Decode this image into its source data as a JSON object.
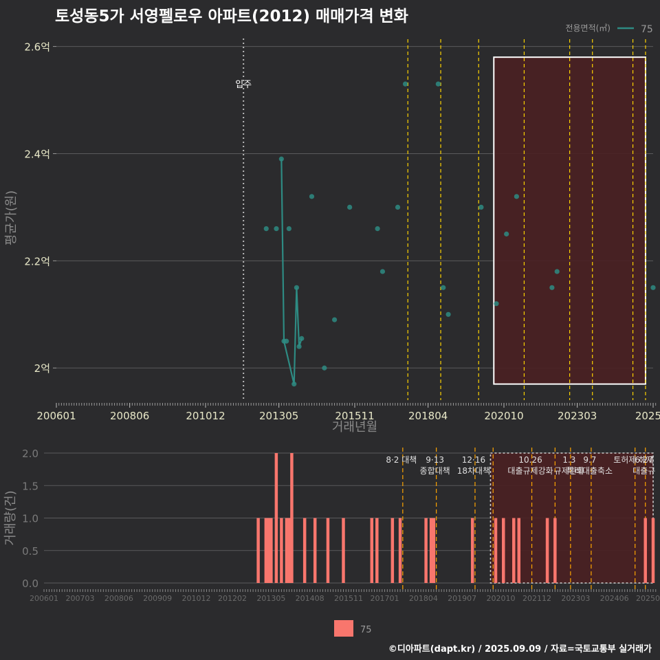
{
  "title": "토성동5가 서영펠로우 아파트(2012) 매매가격 변화",
  "credit": "©디아파트(dapt.kr) / 2025.09.09 / 자료=국토교통부 실거래가",
  "colors": {
    "background": "#2b2b2d",
    "price_series": "#2e8b83",
    "volume_bars": "#f8766d",
    "policy_lines": "#ffd400",
    "policy_lines_bottom": "#ffa500",
    "highlight_fill": "#4a2022",
    "highlight_border_top": "#ffffff",
    "highlight_border_bottom": "#cfcfcf",
    "move_in_line": "#bbbbbb",
    "gridline": "#5b5b5d",
    "axis_text": "#e8e8c8",
    "axis_text_bottom": "#7a7a7a"
  },
  "chart_data": [
    {
      "type": "scatter",
      "title": "토성동5가 서영펠로우 아파트(2012) 매매가격 변화",
      "xlabel": "거래년월",
      "ylabel": "평균가(원)",
      "x_tick_labels": [
        "200601",
        "200806",
        "201012",
        "201305",
        "201511",
        "201804",
        "202010",
        "202303",
        "2025"
      ],
      "x_tick_values": [
        "2006-01",
        "2008-06",
        "2010-12",
        "2013-05",
        "2015-11",
        "2018-04",
        "2020-10",
        "2023-03",
        "2025-09"
      ],
      "xlim": [
        "2006-01",
        "2025-09"
      ],
      "y_tick_labels": [
        "2억",
        "2.2억",
        "2.4억",
        "2.6억"
      ],
      "y_tick_values": [
        2.0,
        2.2,
        2.4,
        2.6
      ],
      "ylim": [
        1.94,
        2.62
      ],
      "y_unit": "억",
      "grid": true,
      "legend": {
        "title": "전용면적(㎡)",
        "entries": [
          "75"
        ],
        "position": "top-right"
      },
      "move_in": {
        "date": "2012-03",
        "label": "입주"
      },
      "policy_dates": [
        "2017-08",
        "2018-09",
        "2019-12",
        "2021-06",
        "2022-12",
        "2023-09",
        "2025-01",
        "2025-06"
      ],
      "highlight_range": {
        "x": [
          "2020-06",
          "2025-06"
        ],
        "y": [
          1.97,
          2.58
        ]
      },
      "series": [
        {
          "name": "75",
          "points": [
            {
              "x": "2012-12",
              "y": 2.26
            },
            {
              "x": "2013-04",
              "y": 2.26
            },
            {
              "x": "2013-06",
              "y": 2.39
            },
            {
              "x": "2013-07",
              "y": 2.05
            },
            {
              "x": "2013-08",
              "y": 2.05
            },
            {
              "x": "2013-09",
              "y": 2.26
            },
            {
              "x": "2013-11",
              "y": 1.97
            },
            {
              "x": "2013-12",
              "y": 2.15
            },
            {
              "x": "2014-01",
              "y": 2.04
            },
            {
              "x": "2014-02",
              "y": 2.055
            },
            {
              "x": "2014-06",
              "y": 2.32
            },
            {
              "x": "2014-11",
              "y": 2.0
            },
            {
              "x": "2015-03",
              "y": 2.09
            },
            {
              "x": "2015-09",
              "y": 2.3
            },
            {
              "x": "2016-08",
              "y": 2.26
            },
            {
              "x": "2016-10",
              "y": 2.18
            },
            {
              "x": "2017-04",
              "y": 2.3
            },
            {
              "x": "2017-07",
              "y": 2.53
            },
            {
              "x": "2018-08",
              "y": 2.53
            },
            {
              "x": "2018-10",
              "y": 2.15
            },
            {
              "x": "2018-12",
              "y": 2.1
            },
            {
              "x": "2020-01",
              "y": 2.3
            },
            {
              "x": "2020-07",
              "y": 2.12
            },
            {
              "x": "2020-11",
              "y": 2.25
            },
            {
              "x": "2021-03",
              "y": 2.32
            },
            {
              "x": "2022-05",
              "y": 2.15
            },
            {
              "x": "2022-07",
              "y": 2.18
            },
            {
              "x": "2025-09",
              "y": 2.15
            }
          ],
          "line_segment": [
            {
              "x": "2013-06",
              "y": 2.39
            },
            {
              "x": "2013-07",
              "y": 2.05
            },
            {
              "x": "2013-11",
              "y": 1.97
            },
            {
              "x": "2013-12",
              "y": 2.15
            },
            {
              "x": "2014-01",
              "y": 2.04
            },
            {
              "x": "2014-02",
              "y": 2.055
            }
          ]
        }
      ]
    },
    {
      "type": "bar",
      "xlabel": "",
      "ylabel": "거래량(건)",
      "x_tick_labels": [
        "200601",
        "200703",
        "200806",
        "200909",
        "201012",
        "201202",
        "201305",
        "201408",
        "201511",
        "201701",
        "201804",
        "201907",
        "202010",
        "202112",
        "202303",
        "202406",
        "20250"
      ],
      "x_tick_values": [
        "2006-01",
        "2007-03",
        "2008-06",
        "2009-09",
        "2010-12",
        "2012-02",
        "2013-05",
        "2014-08",
        "2015-11",
        "2017-01",
        "2018-04",
        "2019-07",
        "2020-10",
        "2021-12",
        "2023-03",
        "2024-06",
        "2025-09"
      ],
      "xlim": [
        "2006-01",
        "2025-09"
      ],
      "y_tick_labels": [
        "0.0",
        "0.5",
        "1.0",
        "1.5",
        "2.0"
      ],
      "y_tick_values": [
        0,
        0.5,
        1.0,
        1.5,
        2.0
      ],
      "ylim": [
        0,
        2.0
      ],
      "grid": true,
      "legend": {
        "entries": [
          "75"
        ],
        "position": "bottom"
      },
      "highlight_range": {
        "x": [
          "2020-06",
          "2025-09"
        ],
        "y": [
          0,
          2.0
        ]
      },
      "policy_events": [
        {
          "date": "2017-08",
          "label_lines": [
            "8·2 대책"
          ]
        },
        {
          "date": "2018-09",
          "label_lines": [
            "9·13",
            "종합대책"
          ]
        },
        {
          "date": "2019-12",
          "label_lines": [
            "12·16",
            "18차대책"
          ]
        },
        {
          "date": "2020-07",
          "label_lines": []
        },
        {
          "date": "2021-10",
          "label_lines": [
            "10.26",
            "대출규제강화"
          ]
        },
        {
          "date": "2022-07",
          "label_lines": []
        },
        {
          "date": "2023-01",
          "label_lines": [
            "1.3",
            "규제완화"
          ]
        },
        {
          "date": "2023-09",
          "label_lines": [
            "9.7",
            "특례대출축소"
          ]
        },
        {
          "date": "2025-02",
          "label_lines": [
            "토허제 해제"
          ]
        },
        {
          "date": "2025-06",
          "label_lines": [
            "6.27",
            "대출규"
          ]
        }
      ],
      "bars": [
        {
          "x": "2012-12",
          "value": 1
        },
        {
          "x": "2013-03",
          "value": 1
        },
        {
          "x": "2013-04",
          "value": 1
        },
        {
          "x": "2013-05",
          "value": 1
        },
        {
          "x": "2013-07",
          "value": 2
        },
        {
          "x": "2013-09",
          "value": 1
        },
        {
          "x": "2013-11",
          "value": 1
        },
        {
          "x": "2013-12",
          "value": 1
        },
        {
          "x": "2014-01",
          "value": 2
        },
        {
          "x": "2014-06",
          "value": 1
        },
        {
          "x": "2014-10",
          "value": 1
        },
        {
          "x": "2015-03",
          "value": 1
        },
        {
          "x": "2015-09",
          "value": 1
        },
        {
          "x": "2016-08",
          "value": 1
        },
        {
          "x": "2016-10",
          "value": 1
        },
        {
          "x": "2017-04",
          "value": 1
        },
        {
          "x": "2017-07",
          "value": 1
        },
        {
          "x": "2018-05",
          "value": 1
        },
        {
          "x": "2018-07",
          "value": 1
        },
        {
          "x": "2018-08",
          "value": 1
        },
        {
          "x": "2019-11",
          "value": 1
        },
        {
          "x": "2020-08",
          "value": 1
        },
        {
          "x": "2020-11",
          "value": 1
        },
        {
          "x": "2021-03",
          "value": 1
        },
        {
          "x": "2021-05",
          "value": 1
        },
        {
          "x": "2022-04",
          "value": 1
        },
        {
          "x": "2022-07",
          "value": 1
        },
        {
          "x": "2025-06",
          "value": 1
        },
        {
          "x": "2025-09",
          "value": 1
        }
      ]
    }
  ]
}
